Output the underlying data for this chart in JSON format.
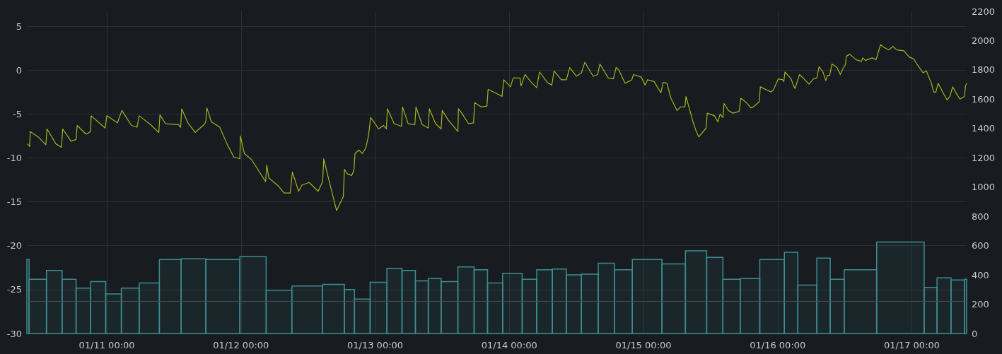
{
  "chart_data": {
    "type": "line",
    "series": [
      {
        "color": "#a6b31f",
        "x": [
          "--01-10T09:48",
          "--01-10T10:12",
          "--01-10T10:18",
          "--01-10T11:42",
          "--01-10T13:06",
          "--01-10T13:18",
          "--01-10T14:54",
          "--01-10T15:54",
          "--01-10T16:06",
          "--01-10T17:36",
          "--01-10T18:30",
          "--01-10T18:42",
          "--01-10T20:18",
          "--01-10T21:06",
          "--01-10T21:12",
          "--01-10T23:42",
          "--01-11T00:00",
          "--01-11T01:54",
          "--01-11T02:42",
          "--01-11T04:24",
          "--01-11T05:24",
          "--01-11T05:48",
          "--01-11T07:48",
          "--01-11T09:18",
          "--01-11T09:30",
          "--01-11T10:30",
          "--01-11T12:48",
          "--01-11T13:12",
          "--01-11T13:24",
          "--01-11T14:30",
          "--01-11T15:48",
          "--01-11T17:24",
          "--01-11T17:42",
          "--01-11T17:54",
          "--01-11T18:42",
          "--01-11T20:12",
          "--01-11T21:30",
          "--01-11T22:42",
          "--01-11T23:48",
          "--01-11T23:54",
          "--01-12T00:36",
          "--01-12T01:54",
          "--01-12T04:24",
          "--01-12T04:36",
          "--01-12T05:00",
          "--01-12T06:42",
          "--01-12T07:42",
          "--01-12T08:48",
          "--01-12T09:12",
          "--01-12T10:18",
          "--01-12T10:54",
          "--01-12T12:12",
          "--01-12T13:48",
          "--01-12T14:36",
          "--01-12T14:48",
          "--01-12T15:36",
          "--01-12T17:06",
          "--01-12T18:18",
          "--01-12T18:30",
          "--01-12T19:00",
          "--01-12T19:48",
          "--01-12T20:12",
          "--01-12T20:24",
          "--01-12T21:06",
          "--01-12T21:42",
          "--01-12T22:18",
          "--01-12T22:48",
          "--01-12T23:12",
          "--01-13T00:00",
          "--01-13T00:36",
          "--01-13T01:30",
          "--01-13T02:00",
          "--01-13T02:12",
          "--01-13T03:24",
          "--01-13T04:42",
          "--01-13T04:54",
          "--01-13T05:54",
          "--01-13T07:06",
          "--01-13T07:18",
          "--01-13T08:24",
          "--01-13T09:30",
          "--01-13T09:42",
          "--01-13T10:48",
          "--01-13T11:48",
          "--01-13T12:00",
          "--01-13T13:06",
          "--01-13T14:48",
          "--01-13T14:54",
          "--01-13T15:36",
          "--01-13T16:42",
          "--01-13T17:36",
          "--01-13T17:48",
          "--01-13T19:00",
          "--01-13T20:00",
          "--01-13T20:12",
          "--01-13T21:30",
          "--01-13T22:42",
          "--01-13T23:00",
          "--01-14T00:12",
          "--01-14T00:42",
          "--01-14T01:54",
          "--01-14T02:06",
          "--01-14T02:48",
          "--01-14T03:48",
          "--01-14T04:54",
          "--01-14T05:24",
          "--01-14T06:48",
          "--01-14T07:36",
          "--01-14T08:00",
          "--01-14T09:18",
          "--01-14T10:12",
          "--01-14T10:48",
          "--01-14T12:00",
          "--01-14T12:54",
          "--01-14T13:30",
          "--01-14T15:00",
          "--01-14T15:48",
          "--01-14T16:12",
          "--01-14T17:42",
          "--01-14T18:36",
          "--01-14T19:06",
          "--01-14T19:36",
          "--01-14T20:42",
          "--01-14T21:54",
          "--01-14T22:12",
          "--01-14T23:36",
          "--01-15T00:18",
          "--01-15T00:42",
          "--01-15T01:54",
          "--01-15T03:06",
          "--01-15T03:30",
          "--01-15T04:12",
          "--01-15T04:54",
          "--01-15T06:00",
          "--01-15T06:36",
          "--01-15T07:24",
          "--01-15T07:36",
          "--01-15T08:54",
          "--01-15T09:30",
          "--01-15T09:54",
          "--01-15T11:12",
          "--01-15T11:24",
          "--01-15T12:42",
          "--01-15T13:18",
          "--01-15T13:42",
          "--01-15T14:12",
          "--01-15T14:24",
          "--01-15T15:12",
          "--01-15T16:00",
          "--01-15T17:06",
          "--01-15T17:24",
          "--01-15T18:24",
          "--01-15T19:12",
          "--01-15T19:36",
          "--01-15T20:42",
          "--01-15T20:54",
          "--01-15T22:48",
          "--01-15T23:12",
          "--01-16T00:06",
          "--01-16T00:54",
          "--01-16T01:06",
          "--01-16T01:18",
          "--01-16T02:24",
          "--01-16T02:48",
          "--01-16T03:06",
          "--01-16T03:54",
          "--01-16T04:42",
          "--01-16T05:36",
          "--01-16T06:24",
          "--01-16T07:00",
          "--01-16T07:24",
          "--01-16T08:06",
          "--01-16T08:36",
          "--01-16T08:54",
          "--01-16T09:18",
          "--01-16T09:42",
          "--01-16T10:36",
          "--01-16T11:12",
          "--01-16T11:42",
          "--01-16T12:06",
          "--01-16T12:18",
          "--01-16T12:54",
          "--01-16T14:00",
          "--01-16T15:00",
          "--01-16T15:12",
          "--01-16T15:42",
          "--01-16T16:54",
          "--01-16T17:36",
          "--01-16T18:24",
          "--01-16T19:00",
          "--01-16T19:54",
          "--01-16T20:36",
          "--01-16T21:18",
          "--01-16T22:36",
          "--01-16T23:30",
          "--01-17T00:18",
          "--01-17T00:54",
          "--01-17T02:00",
          "--01-17T02:36",
          "--01-17T03:30",
          "--01-17T03:54",
          "--01-17T04:18",
          "--01-17T04:42",
          "--01-17T05:36",
          "--01-17T06:18",
          "--01-17T06:48",
          "--01-17T07:18",
          "--01-17T07:54",
          "--01-17T08:36",
          "--01-17T09:24",
          "--01-17T09:36",
          "--01-17T09:48"
        ],
        "values": [
          -8.4,
          -8.7,
          -7.0,
          -7.6,
          -8.5,
          -6.7,
          -8.4,
          -8.8,
          -6.7,
          -8.1,
          -7.9,
          -6.3,
          -7.3,
          -7.0,
          -5.2,
          -6.6,
          -5.2,
          -6.0,
          -4.6,
          -6.3,
          -6.5,
          -5.2,
          -6.2,
          -7.1,
          -5.1,
          -6.1,
          -6.2,
          -6.5,
          -4.4,
          -6.0,
          -7.1,
          -6.2,
          -5.9,
          -4.3,
          -5.9,
          -6.5,
          -8.4,
          -9.9,
          -10.1,
          -7.5,
          -9.5,
          -10.2,
          -12.7,
          -10.8,
          -12.3,
          -13.2,
          -14.0,
          -14.0,
          -11.6,
          -13.8,
          -13.1,
          -12.8,
          -13.8,
          -12.7,
          -10.1,
          -12.2,
          -16.0,
          -14.4,
          -11.3,
          -11.8,
          -12.0,
          -11.4,
          -9.5,
          -9.1,
          -9.5,
          -8.9,
          -7.5,
          -5.4,
          -6.1,
          -6.7,
          -6.3,
          -6.7,
          -4.4,
          -6.1,
          -6.4,
          -4.2,
          -6.1,
          -6.2,
          -4.2,
          -6.2,
          -6.6,
          -4.4,
          -6.1,
          -6.7,
          -4.6,
          -5.7,
          -7.0,
          -4.4,
          -5.0,
          -6.1,
          -6.0,
          -3.7,
          -4.2,
          -4.1,
          -2.2,
          -2.6,
          -3.0,
          -1.1,
          -1.9,
          -0.9,
          -0.9,
          -1.8,
          -0.5,
          -1.3,
          -2.0,
          -0.2,
          -1.4,
          -1.7,
          -0.1,
          -1.1,
          -1.1,
          0.3,
          -0.7,
          -0.3,
          0.9,
          -0.7,
          -0.5,
          0.7,
          -0.9,
          -1.0,
          0.3,
          0.0,
          -1.5,
          -1.1,
          -0.5,
          -0.8,
          -1.7,
          -1.1,
          -1.3,
          -2.6,
          -1.4,
          -1.5,
          -3.2,
          -4.6,
          -4.2,
          -4.2,
          -3.0,
          -6.0,
          -7.1,
          -7.6,
          -6.6,
          -4.9,
          -5.2,
          -5.9,
          -5.0,
          -5.4,
          -3.8,
          -4.6,
          -4.9,
          -4.7,
          -3.2,
          -3.7,
          -4.3,
          -4.2,
          -3.6,
          -1.9,
          -2.5,
          -2.3,
          -1.0,
          -1.1,
          -1.3,
          -0.2,
          -1.0,
          -1.7,
          -2.1,
          -0.5,
          -1.0,
          -1.6,
          -1.0,
          -0.9,
          0.4,
          -0.2,
          -1.2,
          -0.6,
          -0.6,
          0.7,
          0.3,
          -0.5,
          0.2,
          0.6,
          1.6,
          1.8,
          1.2,
          1.0,
          1.4,
          1.1,
          1.4,
          1.2,
          2.9,
          2.6,
          2.3,
          2.7,
          2.3,
          2.2,
          1.5,
          1.3,
          0.7,
          -0.3,
          -0.1,
          -1.5,
          -2.5,
          -2.5,
          -1.5,
          -2.6,
          -3.4,
          -3.0,
          -1.9,
          -2.6,
          -3.3,
          -3.0,
          -1.8,
          -1.5
        ]
      },
      {
        "type": "histogram",
        "axis": "y2",
        "color": "#3c8d92",
        "bins": [
          "--01-10T09:42",
          "--01-10T10:06",
          "--01-10T13:12",
          "--01-10T16:00",
          "--01-10T18:30",
          "--01-10T21:06",
          "--01-10T23:48",
          "--01-11T02:36",
          "--01-11T05:48",
          "--01-11T09:24",
          "--01-11T13:18",
          "--01-11T17:42",
          "--01-11T23:48",
          "--01-12T04:30",
          "--01-12T09:06",
          "--01-12T14:36",
          "--01-12T18:30",
          "--01-12T20:18",
          "--01-12T23:06",
          "--01-13T02:06",
          "--01-13T04:48",
          "--01-13T07:12",
          "--01-13T09:30",
          "--01-13T11:48",
          "--01-13T14:48",
          "--01-13T17:42",
          "--01-13T20:06",
          "--01-13T22:48",
          "--01-14T02:18",
          "--01-14T04:54",
          "--01-14T07:42",
          "--01-14T10:12",
          "--01-14T12:54",
          "--01-14T15:54",
          "--01-14T18:48",
          "--01-14T22:00",
          "--01-15T03:18",
          "--01-15T07:30",
          "--01-15T11:18",
          "--01-15T14:12",
          "--01-15T17:18",
          "--01-15T20:48",
          "--01-16T01:12",
          "--01-16T03:36",
          "--01-16T07:00",
          "--01-16T09:24",
          "--01-16T11:54",
          "--01-16T17:42",
          "--01-17T02:12",
          "--01-17T04:30",
          "--01-17T07:00",
          "--01-17T09:24",
          "--01-17T09:48"
        ],
        "values": [
          505,
          370,
          430,
          370,
          310,
          355,
          270,
          310,
          345,
          505,
          510,
          505,
          525,
          295,
          325,
          335,
          300,
          235,
          350,
          445,
          430,
          360,
          375,
          355,
          455,
          435,
          345,
          410,
          370,
          435,
          440,
          400,
          405,
          480,
          435,
          505,
          475,
          565,
          520,
          370,
          375,
          505,
          555,
          330,
          515,
          370,
          435,
          625,
          315,
          380,
          365,
          370
        ]
      }
    ],
    "xlim": [
      "--01-10T09:42",
      "--01-17T09:48"
    ],
    "xticks": [
      {
        "value": "--01-11T00:00",
        "label": "01/11 00:00"
      },
      {
        "value": "--01-12T00:00",
        "label": "01/12 00:00"
      },
      {
        "value": "--01-13T00:00",
        "label": "01/13 00:00"
      },
      {
        "value": "--01-14T00:00",
        "label": "01/14 00:00"
      },
      {
        "value": "--01-15T00:00",
        "label": "01/15 00:00"
      },
      {
        "value": "--01-16T00:00",
        "label": "01/16 00:00"
      },
      {
        "value": "--01-17T00:00",
        "label": "01/17 00:00"
      }
    ],
    "ylim": [
      -30,
      6.7
    ],
    "yticks": [
      -30,
      -25,
      -20,
      -15,
      -10,
      -5,
      0,
      5
    ],
    "y2lim": [
      0,
      2200
    ],
    "y2ticks": [
      0,
      200,
      400,
      600,
      800,
      1000,
      1200,
      1400,
      1600,
      1800,
      2000,
      2200
    ],
    "ref_lines": [
      {
        "axis": "y2",
        "value": 220,
        "color": "#4a4d50"
      }
    ],
    "grid": true
  }
}
